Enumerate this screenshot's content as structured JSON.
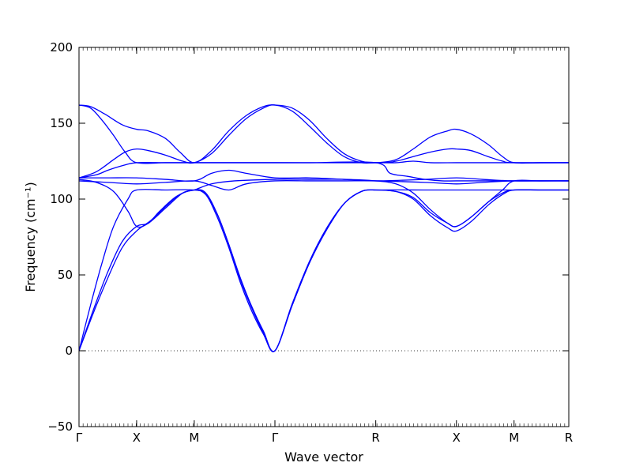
{
  "chart_data": {
    "type": "line",
    "xlabel": "Wave vector",
    "ylabel": "Frequency (cm⁻¹)",
    "ylim": [
      -50,
      200
    ],
    "yticks": [
      -50,
      0,
      50,
      100,
      150,
      200
    ],
    "xlim": [
      0,
      8.5
    ],
    "ticks": [
      {
        "x": 0,
        "label": "Γ"
      },
      {
        "x": 1.0,
        "label": "X"
      },
      {
        "x": 2.0,
        "label": "M"
      },
      {
        "x": 3.4,
        "label": "Γ"
      },
      {
        "x": 5.15,
        "label": "R"
      },
      {
        "x": 6.55,
        "label": "X"
      },
      {
        "x": 7.55,
        "label": "M"
      },
      {
        "x": 8.5,
        "label": "R"
      }
    ],
    "zero_line": true,
    "grid": false,
    "line_color": "#0000ff",
    "series": [
      {
        "values": [
          [
            0,
            0
          ],
          [
            0.25,
            25
          ],
          [
            0.5,
            48
          ],
          [
            0.75,
            68
          ],
          [
            1.0,
            79
          ],
          [
            1.25,
            86
          ],
          [
            1.5,
            95
          ],
          [
            1.75,
            103
          ],
          [
            2.0,
            106
          ],
          [
            2.2,
            103
          ],
          [
            2.4,
            90
          ],
          [
            2.6,
            70
          ],
          [
            2.8,
            47
          ],
          [
            3.0,
            28
          ],
          [
            3.2,
            12
          ],
          [
            3.4,
            0
          ],
          [
            3.7,
            30
          ],
          [
            4.0,
            58
          ],
          [
            4.3,
            80
          ],
          [
            4.6,
            97
          ],
          [
            4.9,
            105
          ],
          [
            5.15,
            106
          ],
          [
            5.5,
            105
          ],
          [
            5.8,
            100
          ],
          [
            6.1,
            89
          ],
          [
            6.4,
            81
          ],
          [
            6.55,
            79
          ],
          [
            6.8,
            85
          ],
          [
            7.1,
            96
          ],
          [
            7.35,
            103
          ],
          [
            7.55,
            106
          ],
          [
            8.0,
            106
          ],
          [
            8.5,
            106
          ]
        ]
      },
      {
        "values": [
          [
            0,
            0
          ],
          [
            0.25,
            27
          ],
          [
            0.5,
            52
          ],
          [
            0.75,
            72
          ],
          [
            1.0,
            82
          ],
          [
            1.2,
            84
          ],
          [
            1.4,
            92
          ],
          [
            1.7,
            102
          ],
          [
            2.0,
            106
          ],
          [
            2.2,
            104
          ],
          [
            2.4,
            90
          ],
          [
            2.6,
            70
          ],
          [
            2.8,
            48
          ],
          [
            3.0,
            29
          ],
          [
            3.2,
            13
          ],
          [
            3.4,
            0
          ],
          [
            3.7,
            31
          ],
          [
            4.0,
            59
          ],
          [
            4.3,
            81
          ],
          [
            4.6,
            97
          ],
          [
            4.9,
            105
          ],
          [
            5.15,
            106
          ],
          [
            5.5,
            105
          ],
          [
            5.8,
            101
          ],
          [
            6.1,
            91
          ],
          [
            6.4,
            84
          ],
          [
            6.55,
            82
          ],
          [
            6.8,
            88
          ],
          [
            7.1,
            98
          ],
          [
            7.35,
            104
          ],
          [
            7.55,
            106
          ],
          [
            8.0,
            106
          ],
          [
            8.5,
            106
          ]
        ]
      },
      {
        "values": [
          [
            0,
            0
          ],
          [
            0.2,
            30
          ],
          [
            0.4,
            58
          ],
          [
            0.6,
            82
          ],
          [
            0.85,
            100
          ],
          [
            1.0,
            106
          ],
          [
            1.5,
            106
          ],
          [
            2.0,
            106
          ],
          [
            2.2,
            103
          ],
          [
            2.4,
            88
          ],
          [
            2.6,
            68
          ],
          [
            2.8,
            45
          ],
          [
            3.0,
            26
          ],
          [
            3.2,
            11
          ],
          [
            3.4,
            0
          ],
          [
            3.7,
            30
          ],
          [
            4.0,
            58
          ],
          [
            4.3,
            80
          ],
          [
            4.6,
            97
          ],
          [
            4.9,
            105
          ],
          [
            5.15,
            106
          ],
          [
            6.0,
            106
          ],
          [
            6.55,
            106
          ],
          [
            7.55,
            106
          ],
          [
            8.5,
            106
          ]
        ]
      },
      {
        "values": [
          [
            0,
            113
          ],
          [
            0.3,
            111
          ],
          [
            0.6,
            105
          ],
          [
            0.85,
            92
          ],
          [
            1.0,
            82
          ],
          [
            1.2,
            84
          ],
          [
            1.5,
            94
          ],
          [
            1.8,
            104
          ],
          [
            2.0,
            106
          ],
          [
            2.3,
            110
          ],
          [
            2.7,
            112
          ],
          [
            3.4,
            113
          ],
          [
            4.0,
            113
          ],
          [
            4.6,
            113
          ],
          [
            5.15,
            112
          ],
          [
            5.5,
            110
          ],
          [
            5.8,
            104
          ],
          [
            6.1,
            93
          ],
          [
            6.4,
            84
          ],
          [
            6.55,
            82
          ],
          [
            6.8,
            88
          ],
          [
            7.1,
            98
          ],
          [
            7.35,
            106
          ],
          [
            7.55,
            112
          ],
          [
            8.0,
            112
          ],
          [
            8.5,
            112
          ]
        ]
      },
      {
        "values": [
          [
            0,
            112
          ],
          [
            0.5,
            111
          ],
          [
            1.0,
            110
          ],
          [
            1.5,
            111
          ],
          [
            2.0,
            112
          ],
          [
            2.3,
            109
          ],
          [
            2.6,
            106
          ],
          [
            2.9,
            110
          ],
          [
            3.4,
            112
          ],
          [
            4.0,
            112
          ],
          [
            4.6,
            112
          ],
          [
            5.15,
            112
          ],
          [
            6.0,
            111
          ],
          [
            6.55,
            110
          ],
          [
            7.0,
            111
          ],
          [
            7.55,
            112
          ],
          [
            8.5,
            112
          ]
        ]
      },
      {
        "values": [
          [
            0,
            114
          ],
          [
            0.5,
            114
          ],
          [
            1.0,
            114
          ],
          [
            1.5,
            113
          ],
          [
            2.0,
            112
          ],
          [
            2.3,
            117
          ],
          [
            2.6,
            119
          ],
          [
            2.9,
            117
          ],
          [
            3.4,
            114
          ],
          [
            4.0,
            114
          ],
          [
            4.6,
            113
          ],
          [
            5.15,
            112
          ],
          [
            6.0,
            113
          ],
          [
            6.55,
            114
          ],
          [
            7.0,
            113
          ],
          [
            7.55,
            112
          ],
          [
            8.5,
            112
          ]
        ]
      },
      {
        "values": [
          [
            0,
            114
          ],
          [
            0.3,
            118
          ],
          [
            0.6,
            126
          ],
          [
            0.8,
            131
          ],
          [
            1.0,
            133
          ],
          [
            1.2,
            132
          ],
          [
            1.5,
            129
          ],
          [
            1.8,
            125
          ],
          [
            2.0,
            124
          ],
          [
            2.3,
            130
          ],
          [
            2.6,
            142
          ],
          [
            2.9,
            153
          ],
          [
            3.2,
            160
          ],
          [
            3.4,
            162
          ],
          [
            3.7,
            158
          ],
          [
            4.0,
            148
          ],
          [
            4.3,
            137
          ],
          [
            4.6,
            128
          ],
          [
            4.9,
            124
          ],
          [
            5.15,
            124
          ],
          [
            5.5,
            124
          ],
          [
            5.8,
            125
          ],
          [
            6.1,
            124
          ],
          [
            6.55,
            124
          ],
          [
            7.0,
            124
          ],
          [
            7.55,
            124
          ],
          [
            8.5,
            124
          ]
        ]
      },
      {
        "values": [
          [
            0,
            114
          ],
          [
            0.3,
            116
          ],
          [
            0.5,
            119
          ],
          [
            0.75,
            122
          ],
          [
            1.0,
            124
          ],
          [
            1.5,
            124
          ],
          [
            2.0,
            124
          ],
          [
            2.5,
            124
          ],
          [
            3.0,
            124
          ],
          [
            3.4,
            124
          ],
          [
            4.0,
            124
          ],
          [
            5.15,
            124
          ],
          [
            5.4,
            117
          ],
          [
            5.7,
            115
          ],
          [
            6.0,
            113
          ],
          [
            6.3,
            112
          ],
          [
            6.55,
            112
          ],
          [
            7.0,
            112
          ],
          [
            7.55,
            112
          ],
          [
            8.5,
            112
          ]
        ]
      },
      {
        "values": [
          [
            0,
            162
          ],
          [
            0.2,
            161
          ],
          [
            0.45,
            156
          ],
          [
            0.75,
            149
          ],
          [
            1.0,
            146
          ],
          [
            1.2,
            145
          ],
          [
            1.5,
            140
          ],
          [
            1.75,
            131
          ],
          [
            2.0,
            124
          ],
          [
            2.3,
            132
          ],
          [
            2.6,
            145
          ],
          [
            2.9,
            155
          ],
          [
            3.2,
            161
          ],
          [
            3.4,
            162
          ],
          [
            3.7,
            160
          ],
          [
            4.0,
            152
          ],
          [
            4.3,
            140
          ],
          [
            4.6,
            130
          ],
          [
            4.9,
            125
          ],
          [
            5.15,
            124
          ],
          [
            5.5,
            126
          ],
          [
            5.8,
            133
          ],
          [
            6.1,
            141
          ],
          [
            6.4,
            145
          ],
          [
            6.55,
            146
          ],
          [
            6.8,
            143
          ],
          [
            7.1,
            136
          ],
          [
            7.35,
            128
          ],
          [
            7.55,
            124
          ],
          [
            8.0,
            124
          ],
          [
            8.5,
            124
          ]
        ]
      },
      {
        "values": [
          [
            0,
            162
          ],
          [
            0.2,
            160
          ],
          [
            0.4,
            152
          ],
          [
            0.6,
            142
          ],
          [
            0.8,
            131
          ],
          [
            1.0,
            124
          ],
          [
            1.5,
            124
          ],
          [
            2.0,
            124
          ],
          [
            3.4,
            124
          ],
          [
            5.15,
            124
          ],
          [
            5.5,
            125
          ],
          [
            5.8,
            128
          ],
          [
            6.1,
            131
          ],
          [
            6.4,
            133
          ],
          [
            6.55,
            133
          ],
          [
            6.8,
            132
          ],
          [
            7.1,
            128
          ],
          [
            7.35,
            125
          ],
          [
            7.55,
            124
          ],
          [
            8.5,
            124
          ]
        ]
      }
    ]
  }
}
